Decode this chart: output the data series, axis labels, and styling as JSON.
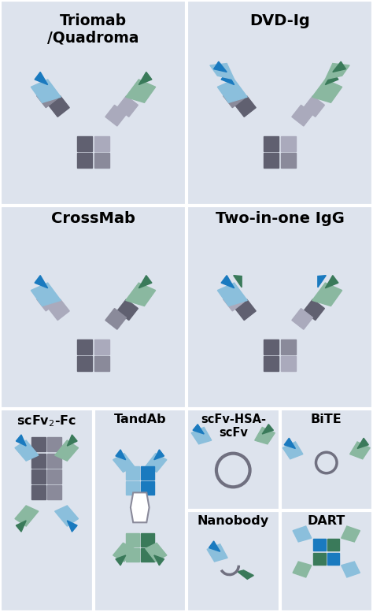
{
  "background_color": "#dde3ed",
  "colors": {
    "blue_dark": "#1a7abf",
    "blue_light": "#8bbfdc",
    "green_dark": "#3a7a5a",
    "green_light": "#8ab8a0",
    "gray_dark": "#606070",
    "gray_mid": "#8a8a9a",
    "gray_light": "#aaaabc",
    "ring_color": "#707080"
  },
  "labels": {
    "triomab": "Triomab\n/Quadroma",
    "dvdig": "DVD-Ig",
    "crossmab": "CrossMab",
    "twoinone": "Two-in-one IgG",
    "tandab": "TandAb",
    "scfvhsa": "scFv-HSA-\nscFv",
    "nanobody": "Nanobody",
    "bite": "BiTE",
    "dart": "DART"
  },
  "figsize": [
    4.74,
    7.77
  ],
  "dpi": 100
}
